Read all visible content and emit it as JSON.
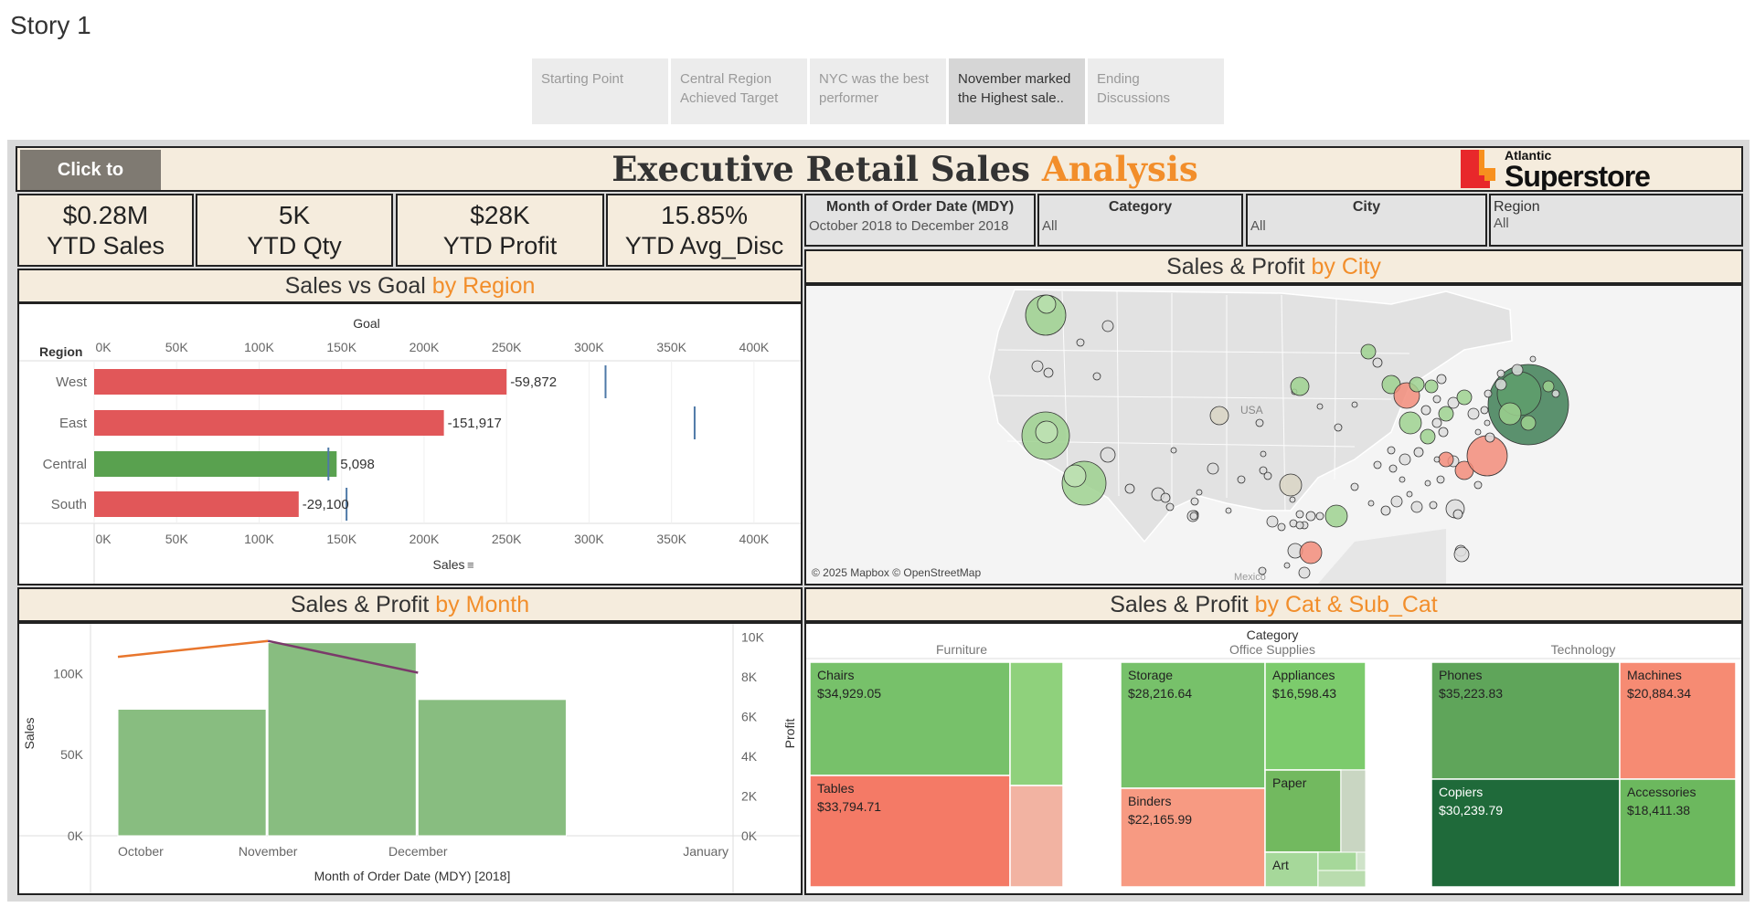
{
  "story": {
    "title": "Story 1",
    "tabs": [
      {
        "label": "Starting Point",
        "active": false
      },
      {
        "label": "Central Region Achieved Target",
        "active": false
      },
      {
        "label": "NYC was the best performer",
        "active": false
      },
      {
        "label": "November marked the  Highest sale..",
        "active": true
      },
      {
        "label": "Ending Discussions",
        "active": false
      }
    ]
  },
  "header": {
    "button_label": "Click to",
    "title_main": "Executive Retail Sales ",
    "title_accent": "Analysis",
    "logo_top": "Atlantic",
    "logo_bottom": "Superstore"
  },
  "kpis": [
    {
      "value": "$0.28M",
      "label": "YTD Sales"
    },
    {
      "value": "5K",
      "label": "YTD Qty"
    },
    {
      "value": "$28K",
      "label": "YTD Profit"
    },
    {
      "value": "15.85%",
      "label": "YTD Avg_Disc"
    }
  ],
  "filters": [
    {
      "title": "Month of Order Date (MDY)",
      "value": "October 2018 to December 2018"
    },
    {
      "title": "Category",
      "value": "All"
    },
    {
      "title": "City",
      "value": "All"
    },
    {
      "title": "Region",
      "value": "All"
    }
  ],
  "panels": {
    "region": {
      "title_main": "Sales vs Goal ",
      "title_accent": "by Region"
    },
    "city": {
      "title_main": "Sales & Profit ",
      "title_accent": "by City",
      "attribution": "© 2025 Mapbox © OpenStreetMap",
      "usa_label": "USA",
      "mexico_label": "Mexico"
    },
    "month": {
      "title_main": "Sales & Profit ",
      "title_accent": "by Month"
    },
    "cat": {
      "title_main": "Sales & Profit ",
      "title_accent": "by Cat & Sub_Cat"
    }
  },
  "colors": {
    "accent": "#f28e2b",
    "negative": "#e15759",
    "positive": "#59a14f",
    "goal": "#4e79a7"
  },
  "chart_data": [
    {
      "type": "bar",
      "name": "sales-vs-goal",
      "top_label": "Goal",
      "row_header": "Region",
      "xlabel": "Sales",
      "xlim": [
        0,
        420000
      ],
      "ticks": [
        "0K",
        "50K",
        "100K",
        "150K",
        "200K",
        "250K",
        "300K",
        "350K",
        "400K"
      ],
      "tick_values": [
        0,
        50000,
        100000,
        150000,
        200000,
        250000,
        300000,
        350000,
        400000
      ],
      "categories": [
        "West",
        "East",
        "Central",
        "South"
      ],
      "values": [
        250000,
        212000,
        147000,
        124000
      ],
      "goals": [
        310000,
        364000,
        142000,
        153000
      ],
      "labels": [
        "-59,872",
        "-151,917",
        "5,098",
        "-29,100"
      ],
      "status": [
        "below",
        "below",
        "above",
        "below"
      ]
    },
    {
      "type": "bar",
      "name": "sales-profit-by-month",
      "xlabel": "Month of Order Date (MDY) [2018]",
      "ylabel": "Sales",
      "y2label": "Profit",
      "x_ticks": [
        "October",
        "November",
        "December",
        "January"
      ],
      "categories": [
        "October",
        "November",
        "December"
      ],
      "sales": [
        78000,
        119000,
        84000
      ],
      "profit": [
        9000,
        9800,
        8200
      ],
      "ylim": [
        0,
        125000
      ],
      "y_ticks": [
        "0K",
        "50K",
        "100K"
      ],
      "y_tick_values": [
        0,
        50000,
        100000
      ],
      "y2lim": [
        0,
        10200
      ],
      "y2_ticks": [
        "0K",
        "2K",
        "4K",
        "6K",
        "8K",
        "10K"
      ],
      "y2_tick_values": [
        0,
        2000,
        4000,
        6000,
        8000,
        10000
      ]
    },
    {
      "type": "heatmap",
      "name": "sales-profit-treemap",
      "header": "Category",
      "categories": [
        "Furniture",
        "Office Supplies",
        "Technology"
      ],
      "cells": [
        {
          "category": "Furniture",
          "label": "Chairs",
          "value": "$34,929.05",
          "color": "#77c16a"
        },
        {
          "category": "Furniture",
          "label": "Tables",
          "value": "$33,794.71",
          "color": "#f47a66"
        },
        {
          "category": "Furniture",
          "label": "",
          "value": "",
          "color": "#8fd17c"
        },
        {
          "category": "Furniture",
          "label": "",
          "value": "",
          "color": "#f2b3a2"
        },
        {
          "category": "Office Supplies",
          "label": "Storage",
          "value": "$28,216.64",
          "color": "#77c16a"
        },
        {
          "category": "Office Supplies",
          "label": "Binders",
          "value": "$22,165.99",
          "color": "#f79a82"
        },
        {
          "category": "Office Supplies",
          "label": "Appliances",
          "value": "$16,598.43",
          "color": "#7ccb6c"
        },
        {
          "category": "Office Supplies",
          "label": "Paper",
          "value": "",
          "color": "#72b95f"
        },
        {
          "category": "Office Supplies",
          "label": "Art",
          "value": "",
          "color": "#a6d89a"
        },
        {
          "category": "Technology",
          "label": "Phones",
          "value": "$35,223.83",
          "color": "#5fa55a"
        },
        {
          "category": "Technology",
          "label": "Machines",
          "value": "$20,884.34",
          "color": "#f68b73"
        },
        {
          "category": "Technology",
          "label": "Copiers",
          "value": "$30,239.79",
          "color": "#1f6a3a"
        },
        {
          "category": "Technology",
          "label": "Accessories",
          "value": "$18,411.38",
          "color": "#6cb85e"
        }
      ]
    }
  ]
}
